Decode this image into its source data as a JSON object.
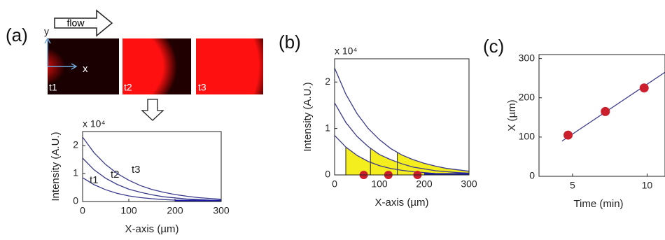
{
  "chart_data": [
    {
      "type": "line",
      "label": "(a)",
      "images": {
        "flow": "flow",
        "axis_y": "y",
        "axis_x": "x",
        "frames": [
          "t1",
          "t2",
          "t3"
        ]
      },
      "y_multiplier": "x 10⁴",
      "xlabel": "X-axis (µm)",
      "ylabel": "Intensity (A.U.)",
      "x": [
        0,
        25,
        50,
        75,
        100,
        125,
        150,
        175,
        200,
        225,
        250,
        275,
        300
      ],
      "series": [
        {
          "name": "t1",
          "color": "#3a3a8c",
          "values": [
            0.85,
            0.6,
            0.42,
            0.29,
            0.2,
            0.14,
            0.1,
            0.07,
            0.05,
            0.03,
            0.02,
            0.02,
            0.01
          ]
        },
        {
          "name": "t2",
          "color": "#3a3a8c",
          "values": [
            1.55,
            1.13,
            0.83,
            0.61,
            0.44,
            0.33,
            0.24,
            0.17,
            0.13,
            0.09,
            0.07,
            0.05,
            0.04
          ]
        },
        {
          "name": "t3",
          "color": "#3a3a8c",
          "values": [
            2.3,
            1.74,
            1.32,
            1.0,
            0.76,
            0.57,
            0.43,
            0.33,
            0.25,
            0.19,
            0.14,
            0.11,
            0.08
          ]
        }
      ],
      "xlim": [
        0,
        300
      ],
      "xticks": [
        0,
        100,
        200,
        300
      ],
      "ylim": [
        0,
        2.5
      ],
      "yticks": [
        0,
        1,
        2
      ]
    },
    {
      "type": "line",
      "label": "(b)",
      "y_multiplier": "x 10⁴",
      "xlabel": "X-axis (µm)",
      "ylabel": "Intensity (A.U.)",
      "x": [
        0,
        25,
        50,
        75,
        100,
        125,
        150,
        175,
        200,
        225,
        250,
        275,
        300
      ],
      "series": [
        {
          "color": "#3a3a8c",
          "values": [
            0.85,
            0.6,
            0.42,
            0.29,
            0.2,
            0.14,
            0.1,
            0.07,
            0.05,
            0.03,
            0.02,
            0.02,
            0.01
          ]
        },
        {
          "color": "#3a3a8c",
          "values": [
            1.55,
            1.13,
            0.83,
            0.61,
            0.44,
            0.33,
            0.24,
            0.17,
            0.13,
            0.09,
            0.07,
            0.05,
            0.04
          ]
        },
        {
          "color": "#3a3a8c",
          "values": [
            2.3,
            1.74,
            1.32,
            1.0,
            0.76,
            0.57,
            0.43,
            0.33,
            0.25,
            0.19,
            0.14,
            0.11,
            0.08
          ]
        }
      ],
      "area_starts": [
        25,
        80,
        140
      ],
      "area_color": "#f5ee1e",
      "markers": {
        "color": "#cc1f2e",
        "x": [
          65,
          120,
          185
        ],
        "y": [
          0,
          0,
          0
        ]
      },
      "xlim": [
        0,
        300
      ],
      "xticks": [
        0,
        100,
        200,
        300
      ],
      "ylim": [
        0,
        2.5
      ],
      "yticks": [
        0,
        1,
        2
      ]
    },
    {
      "type": "scatter",
      "label": "(c)",
      "xlabel": "Time (min)",
      "ylabel": "X (µm)",
      "x": [
        4.7,
        7.2,
        9.8
      ],
      "values": [
        105,
        165,
        225
      ],
      "color": "#cc1f2e",
      "fit_x": [
        4.3,
        11.2
      ],
      "fit_y": [
        90,
        265
      ],
      "fit_color": "#3a3a8c",
      "xlim": [
        2.75,
        11.2
      ],
      "xticks": [
        5,
        10
      ],
      "ylim": [
        0,
        310
      ],
      "yticks": [
        0,
        100,
        200,
        300
      ]
    }
  ]
}
